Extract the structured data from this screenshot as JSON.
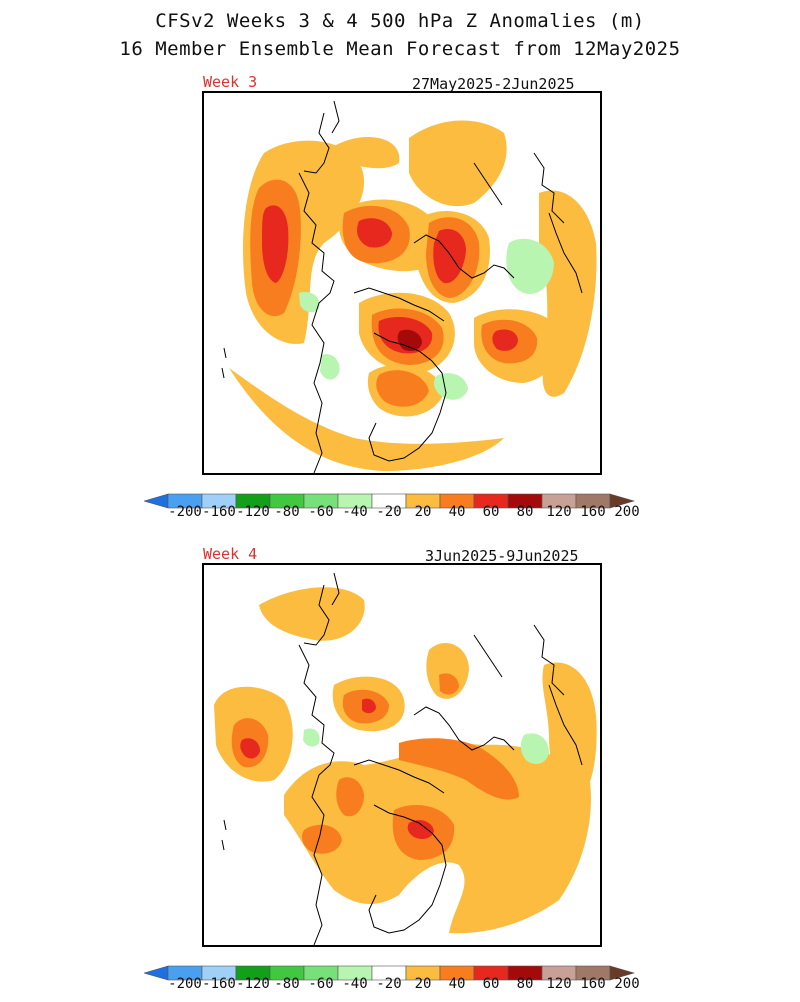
{
  "header": {
    "title_line1": "CFSv2 Weeks 3 & 4 500 hPa Z Anomalies (m)",
    "title_line2": "16 Member Ensemble Mean Forecast from 12May2025"
  },
  "panels": [
    {
      "label": "Week 3",
      "dates": "27May2025-2Jun2025"
    },
    {
      "label": "Week 4",
      "dates": "3Jun2025-9Jun2025"
    }
  ],
  "colorbar": {
    "labels": [
      "-200",
      "-160",
      "-120",
      "-80",
      "-60",
      "-40",
      "-20",
      "20",
      "40",
      "60",
      "80",
      "120",
      "160",
      "200"
    ],
    "colors": [
      "#1e6fe0",
      "#4aa0f0",
      "#a0d0f8",
      "#12a01a",
      "#40c840",
      "#78e078",
      "#b8f5b0",
      "#ffffff",
      "#fbbc40",
      "#f77d1e",
      "#e6281e",
      "#a50a0a",
      "#c8a096",
      "#a07868",
      "#6a3a28"
    ]
  },
  "anomaly_colors": {
    "a20": "#fbbc40",
    "a40": "#f77d1e",
    "a60": "#e6281e",
    "a80": "#a50a0a",
    "n20": "#b8f5b0"
  }
}
